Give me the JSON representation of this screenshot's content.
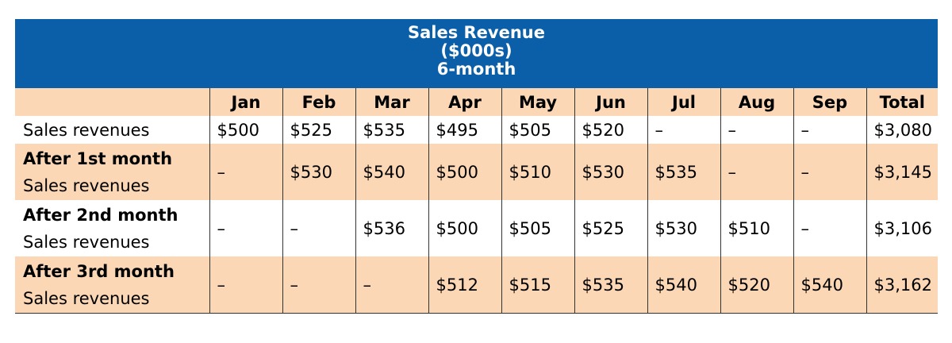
{
  "title": {
    "line1": "Sales Revenue",
    "line2": "($000s)",
    "line3": "6-month"
  },
  "header": {
    "label": "",
    "months": [
      "Jan",
      "Feb",
      "Mar",
      "Apr",
      "May",
      "Jun",
      "Jul",
      "Aug",
      "Sep"
    ],
    "total": "Total"
  },
  "rows": [
    {
      "heading": "",
      "label": "Sales revenues",
      "values": [
        "$500",
        "$525",
        "$535",
        "$495",
        "$505",
        "$520",
        "–",
        "–",
        "–"
      ],
      "total": "$3,080"
    },
    {
      "heading": "After 1st month",
      "label": "Sales revenues",
      "values": [
        "–",
        "$530",
        "$540",
        "$500",
        "$510",
        "$530",
        "$535",
        "–",
        "–"
      ],
      "total": "$3,145"
    },
    {
      "heading": "After 2nd month",
      "label": "Sales revenues",
      "values": [
        "–",
        "–",
        "$536",
        "$500",
        "$505",
        "$525",
        "$530",
        "$510",
        "–"
      ],
      "total": "$3,106"
    },
    {
      "heading": "After 3rd month",
      "label": "Sales revenues",
      "values": [
        "–",
        "–",
        "–",
        "$512",
        "$515",
        "$535",
        "$540",
        "$520",
        "$540"
      ],
      "total": "$3,162"
    }
  ],
  "colors": {
    "banner": "#0a5fa8",
    "band": "#fbd7b5"
  }
}
